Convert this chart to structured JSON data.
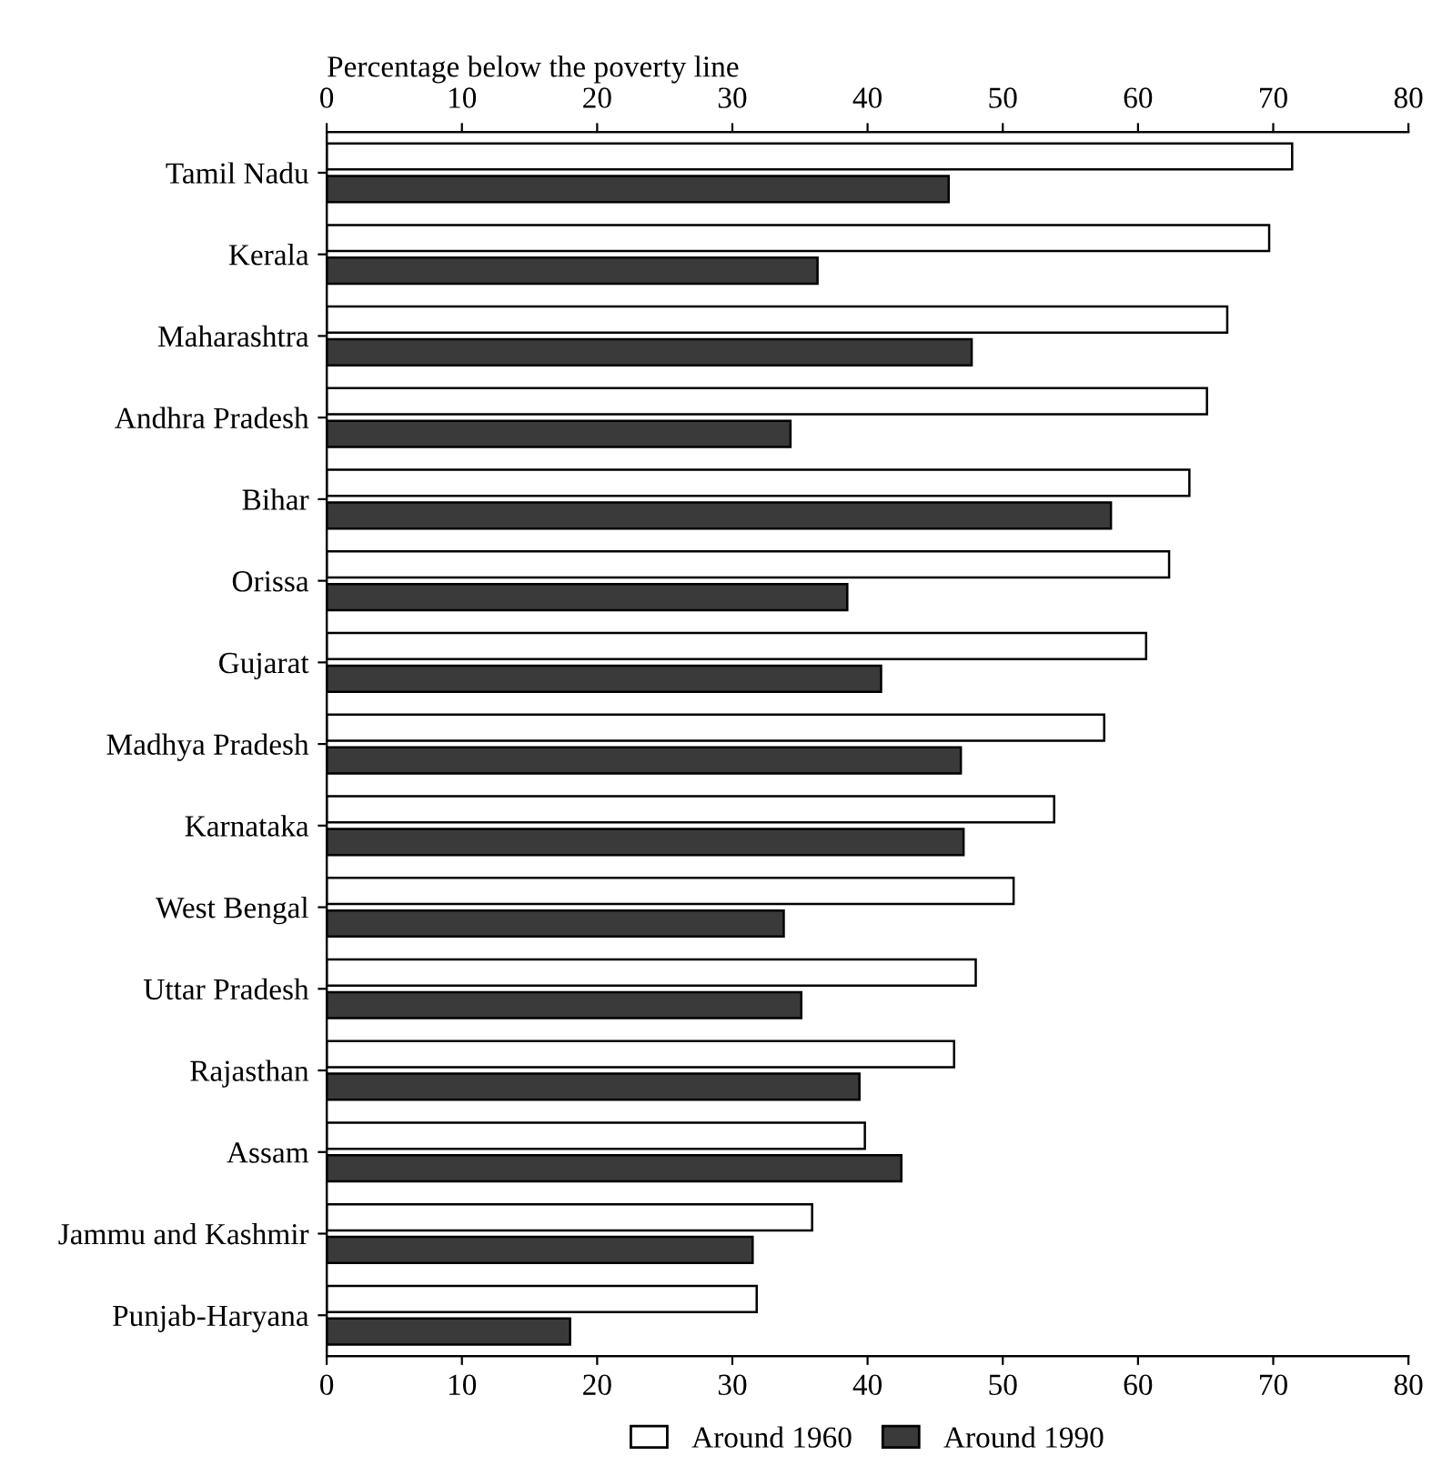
{
  "chart_data": {
    "type": "bar",
    "orientation": "horizontal",
    "x2label": "Percentage below the poverty line",
    "categories": [
      "Tamil Nadu",
      "Kerala",
      "Maharashtra",
      "Andhra Pradesh",
      "Bihar",
      "Orissa",
      "Gujarat",
      "Madhya Pradesh",
      "Karnataka",
      "West Bengal",
      "Uttar Pradesh",
      "Rajasthan",
      "Assam",
      "Jammu and Kashmir",
      "Punjab-Haryana"
    ],
    "series": [
      {
        "name": "Around 1960",
        "color": "#ffffff",
        "values": [
          71.4,
          69.7,
          66.6,
          65.1,
          63.8,
          62.3,
          60.6,
          57.5,
          53.8,
          50.8,
          48.0,
          46.4,
          39.8,
          35.9,
          31.8
        ]
      },
      {
        "name": "Around 1990",
        "color": "#3a3a3a",
        "values": [
          46.0,
          36.3,
          47.7,
          34.3,
          58.0,
          38.5,
          41.0,
          46.9,
          47.1,
          33.8,
          35.1,
          39.4,
          42.5,
          31.5,
          18.0
        ]
      }
    ],
    "xlim": [
      0,
      80
    ],
    "xticks": [
      0,
      10,
      20,
      30,
      40,
      50,
      60,
      70,
      80
    ],
    "x2lim": [
      0,
      80
    ],
    "x2ticks": [
      0,
      10,
      20,
      30,
      40,
      50,
      60,
      70,
      80
    ],
    "grid": false,
    "legend": "bottom"
  }
}
